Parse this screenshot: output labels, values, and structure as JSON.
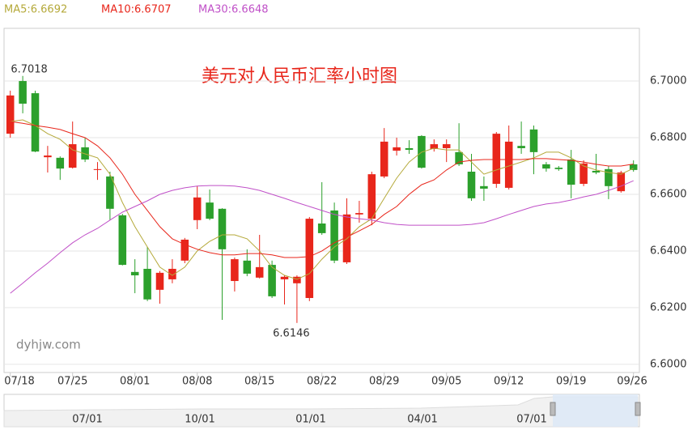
{
  "chart_data": {
    "type": "candlestick",
    "title": "美元对人民币汇率小时图",
    "watermark": "dyhjw.com",
    "up_color": "#e8261b",
    "down_color": "#2ca02c",
    "categories": [
      "07/18",
      null,
      null,
      null,
      null,
      "07/25",
      null,
      null,
      null,
      null,
      "08/01",
      null,
      null,
      null,
      null,
      "08/08",
      null,
      null,
      null,
      null,
      "08/15",
      null,
      null,
      null,
      null,
      "08/22",
      null,
      null,
      null,
      null,
      "08/29",
      null,
      null,
      null,
      null,
      "09/05",
      null,
      null,
      null,
      null,
      "09/12",
      null,
      null,
      null,
      null,
      "09/19",
      null,
      null,
      null,
      null,
      "09/26"
    ],
    "open": [
      6.6814,
      6.7,
      6.6957,
      6.6731,
      6.6729,
      6.6694,
      6.6766,
      6.6686,
      6.6663,
      6.6526,
      6.6326,
      6.6337,
      6.6263,
      6.63,
      6.6366,
      6.6509,
      6.6571,
      6.6549,
      6.6294,
      6.6366,
      6.6306,
      6.6351,
      6.63,
      6.6286,
      6.6234,
      6.6497,
      6.6543,
      6.636,
      6.6529,
      6.6514,
      6.6663,
      6.6754,
      6.6763,
      6.6806,
      6.676,
      6.6763,
      6.6749,
      6.668,
      6.6629,
      6.6637,
      6.6623,
      6.6771,
      6.6829,
      6.6706,
      6.6694,
      6.6723,
      6.6637,
      6.6683,
      6.6689,
      6.6611,
      6.6706
    ],
    "high": [
      6.6966,
      6.7018,
      6.6966,
      6.6771,
      6.6734,
      6.6857,
      6.68,
      6.6714,
      6.668,
      6.6531,
      6.6371,
      6.6414,
      6.6329,
      6.6371,
      6.6446,
      6.6629,
      6.6617,
      6.6551,
      6.6377,
      6.6406,
      6.6457,
      6.6366,
      6.6314,
      6.6314,
      6.652,
      6.6643,
      6.6571,
      6.6586,
      6.6577,
      6.668,
      6.6834,
      6.68,
      6.6791,
      6.6809,
      6.6794,
      6.6794,
      6.6851,
      6.6743,
      6.6663,
      6.682,
      6.6843,
      6.6857,
      6.6843,
      6.6714,
      6.67,
      6.6757,
      6.672,
      6.6743,
      6.67,
      6.6683,
      6.672
    ],
    "low": [
      6.68,
      6.6886,
      6.6749,
      6.6677,
      6.6651,
      6.6691,
      6.6714,
      6.6651,
      6.6509,
      6.6349,
      6.6251,
      6.6223,
      6.6214,
      6.6286,
      6.6357,
      6.6477,
      6.6509,
      6.6157,
      6.6257,
      6.6311,
      6.6303,
      6.6234,
      6.6211,
      6.6146,
      6.6223,
      6.6457,
      6.6357,
      6.6354,
      6.65,
      6.6491,
      6.6657,
      6.6737,
      6.6743,
      6.6691,
      6.6751,
      6.6714,
      6.67,
      6.6577,
      6.6577,
      6.6623,
      6.6617,
      6.6743,
      6.6671,
      6.668,
      6.6683,
      6.6586,
      6.6629,
      6.6671,
      6.6583,
      6.6606,
      6.668
    ],
    "close": [
      6.6949,
      6.692,
      6.6751,
      6.6737,
      6.6691,
      6.6777,
      6.6723,
      6.6689,
      6.6549,
      6.6351,
      6.6314,
      6.6229,
      6.6323,
      6.6337,
      6.644,
      6.6589,
      6.6514,
      6.6406,
      6.6371,
      6.632,
      6.6343,
      6.624,
      6.6309,
      6.6309,
      6.6514,
      6.6463,
      6.6366,
      6.6529,
      6.6534,
      6.6671,
      6.6786,
      6.6766,
      6.6757,
      6.6694,
      6.6777,
      6.6777,
      6.6706,
      6.6586,
      6.662,
      6.6814,
      6.6786,
      6.6763,
      6.6749,
      6.6691,
      6.6689,
      6.6634,
      6.6709,
      6.6677,
      6.6629,
      6.6677,
      6.6686
    ],
    "max_label": "6.7018",
    "min_label": "6.6146",
    "series": [
      {
        "label": "MA5:6.6692",
        "color": "#b5a93a",
        "values": [
          6.6857,
          6.6863,
          6.6843,
          6.6814,
          6.6794,
          6.6757,
          6.6743,
          6.6729,
          6.6671,
          6.6571,
          6.6486,
          6.6414,
          6.6343,
          6.6314,
          6.6343,
          6.64,
          6.6434,
          6.6457,
          6.6457,
          6.6443,
          6.64,
          6.6343,
          6.6314,
          6.63,
          6.632,
          6.6371,
          6.6414,
          6.6443,
          6.6486,
          6.6514,
          6.6586,
          6.6657,
          6.6714,
          6.6749,
          6.6763,
          6.6757,
          6.6757,
          6.6714,
          6.6671,
          6.6686,
          6.67,
          6.6714,
          6.6729,
          6.6749,
          6.6749,
          6.6729,
          6.67,
          6.6686,
          6.6677,
          6.6671,
          6.6692
        ]
      },
      {
        "label": "MA10:6.6707",
        "color": "#e8261b",
        "values": [
          6.6857,
          6.6851,
          6.6843,
          6.6837,
          6.6829,
          6.6814,
          6.68,
          6.6771,
          6.6729,
          6.6671,
          6.66,
          6.6543,
          6.6486,
          6.6443,
          6.6423,
          6.6406,
          6.6394,
          6.6386,
          6.6386,
          6.6391,
          6.6391,
          6.6386,
          6.6377,
          6.6377,
          6.638,
          6.64,
          6.6429,
          6.6449,
          6.6471,
          6.6494,
          6.6529,
          6.6557,
          6.66,
          6.6634,
          6.6651,
          6.6686,
          6.6714,
          6.672,
          6.6723,
          6.6723,
          6.6723,
          6.6723,
          6.6726,
          6.6726,
          6.6723,
          6.672,
          6.6714,
          6.6706,
          6.67,
          6.67,
          6.6707
        ]
      },
      {
        "label": "MA30:6.6648",
        "color": "#c050c8",
        "values": [
          6.6251,
          6.6286,
          6.6323,
          6.6357,
          6.6394,
          6.6429,
          6.6457,
          6.648,
          6.6509,
          6.6537,
          6.6557,
          6.6577,
          6.66,
          6.6614,
          6.6623,
          6.6629,
          6.6631,
          6.6631,
          6.6629,
          6.6623,
          6.6614,
          6.66,
          6.6586,
          6.6571,
          6.6557,
          6.6543,
          6.6529,
          6.652,
          6.6514,
          6.6509,
          6.65,
          6.6494,
          6.6491,
          6.6491,
          6.6491,
          6.6491,
          6.6491,
          6.6494,
          6.65,
          6.6514,
          6.6529,
          6.6543,
          6.6557,
          6.6566,
          6.6571,
          6.658,
          6.6591,
          6.66,
          6.6614,
          6.6629,
          6.6648
        ]
      }
    ],
    "ylim": [
      6.5971,
      6.7186
    ],
    "yticks": [
      {
        "value": 6.6,
        "label": "6.6000"
      },
      {
        "value": 6.62,
        "label": "6.6200"
      },
      {
        "value": 6.64,
        "label": "6.6400"
      },
      {
        "value": 6.66,
        "label": "6.6600"
      },
      {
        "value": 6.68,
        "label": "6.6800"
      },
      {
        "value": 6.7,
        "label": "6.7000"
      }
    ],
    "grid": true,
    "navigator": {
      "labels": [
        "07/01",
        "10/01",
        "01/01",
        "04/01",
        "07/01"
      ]
    }
  }
}
